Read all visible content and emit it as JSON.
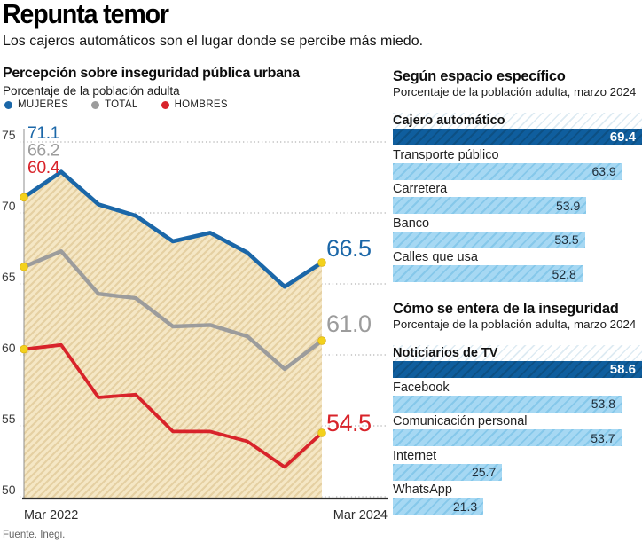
{
  "header": {
    "title": "Repunta temor",
    "subtitle": "Los cajeros automáticos son el lugar donde se percibe más miedo."
  },
  "source": "Fuente. Inegi.",
  "colors": {
    "accent_blue": "#1b67a8",
    "dark_bar_blue": "#0f5e9e",
    "dark_bar_hatch": "#0d5084",
    "light_bar_blue": "#a6d8f3",
    "light_bar_hatch": "#86c8ea",
    "gray": "#9c9c9c",
    "red": "#d8232a",
    "marker_yellow": "#f3d11c",
    "marker_edge": "#d8ae10",
    "area_beige": "#f5e7c5",
    "area_hatch": "#e5d0a2",
    "grid_gray": "#b4b4b4",
    "axis_dark": "#2d2d2d",
    "tick_text": "#3a3a3a"
  },
  "chart_data": [
    {
      "type": "line",
      "title": "Percepción sobre inseguridad pública urbana",
      "subtitle": "Porcentaje de la población adulta",
      "x_axis_labels": [
        "Mar 2022",
        "Mar 2024"
      ],
      "y_ticks": [
        75,
        70,
        65,
        60,
        55,
        50
      ],
      "ylim": [
        50,
        75
      ],
      "grid": true,
      "legend_position": "top",
      "area_under_first_series": true,
      "series": [
        {
          "name": "MUJERES",
          "color": "#1b67a8",
          "values": [
            71.1,
            72.9,
            70.6,
            69.8,
            68.0,
            68.6,
            67.2,
            64.8,
            66.5
          ]
        },
        {
          "name": "TOTAL",
          "color": "#9c9c9c",
          "values": [
            66.2,
            67.3,
            64.3,
            64.0,
            62.0,
            62.1,
            61.3,
            59.0,
            61.0
          ]
        },
        {
          "name": "HOMBRES",
          "color": "#d8232a",
          "values": [
            60.4,
            60.7,
            57.0,
            57.2,
            54.6,
            54.6,
            53.9,
            52.1,
            54.5
          ]
        }
      ],
      "start_labels": [
        "71.1",
        "66.2",
        "60.4"
      ],
      "end_labels": [
        "66.5",
        "61.0",
        "54.5"
      ]
    },
    {
      "type": "bar",
      "title": "Según espacio específico",
      "subtitle": "Porcentaje de la población adulta, marzo 2024",
      "items": [
        {
          "label": "Cajero automático",
          "value": 69.4,
          "highlight": true
        },
        {
          "label": "Transporte público",
          "value": 63.9,
          "highlight": false
        },
        {
          "label": "Carretera",
          "value": 53.9,
          "highlight": false
        },
        {
          "label": "Banco",
          "value": 53.5,
          "highlight": false
        },
        {
          "label": "Calles que usa",
          "value": 52.8,
          "highlight": false
        }
      ]
    },
    {
      "type": "bar",
      "title": "Cómo se entera de la inseguridad",
      "subtitle": "Porcentaje de la población adulta, marzo 2024",
      "items": [
        {
          "label": "Noticiarios de TV",
          "value": 58.6,
          "highlight": true
        },
        {
          "label": "Facebook",
          "value": 53.8,
          "highlight": false
        },
        {
          "label": "Comunicación personal",
          "value": 53.7,
          "highlight": false
        },
        {
          "label": "Internet",
          "value": 25.7,
          "highlight": false
        },
        {
          "label": "WhatsApp",
          "value": 21.3,
          "highlight": false
        }
      ]
    }
  ]
}
